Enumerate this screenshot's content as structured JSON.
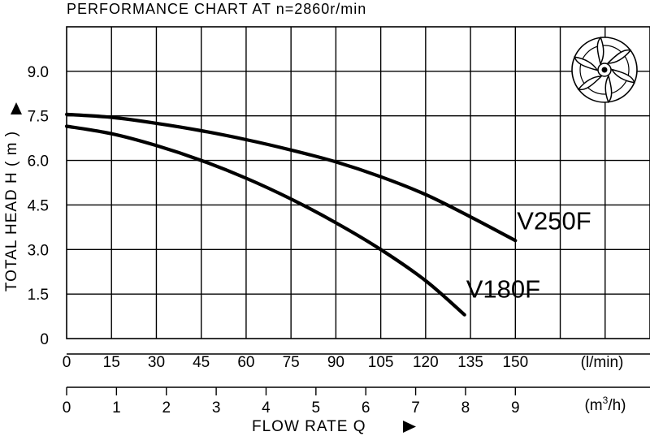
{
  "chart_data": {
    "type": "line",
    "title": "PERFORMANCE  CHART  AT  n=2860r/min",
    "ylabel": "TOTAL HEAD  H ( m )",
    "xlabel": "FLOW  RATE  Q",
    "ylim": [
      0,
      10.5
    ],
    "y_ticks": [
      "0",
      "1.5",
      "3.0",
      "4.5",
      "6.0",
      "7.5",
      "9.0"
    ],
    "y_tick_values": [
      0,
      1.5,
      3.0,
      4.5,
      6.0,
      7.5,
      9.0
    ],
    "x_lmin": {
      "unit": "(l/min)",
      "ticks": [
        "0",
        "15",
        "30",
        "45",
        "60",
        "75",
        "90",
        "105",
        "120",
        "135",
        "150"
      ],
      "values": [
        0,
        15,
        30,
        45,
        60,
        75,
        90,
        105,
        120,
        135,
        150
      ]
    },
    "x_m3h": {
      "unit_prefix": "(m",
      "unit_sup": "3",
      "unit_suffix": "/h)",
      "ticks": [
        "0",
        "1",
        "2",
        "3",
        "4",
        "5",
        "6",
        "7",
        "8",
        "9"
      ],
      "values": [
        0,
        1,
        2,
        3,
        4,
        5,
        6,
        7,
        8,
        9
      ]
    },
    "xlim_lmin": [
      0,
      195
    ],
    "grid": true,
    "series": [
      {
        "name": "V250F",
        "x": [
          0,
          15,
          30,
          45,
          60,
          75,
          90,
          105,
          120,
          135,
          150
        ],
        "y": [
          7.55,
          7.45,
          7.25,
          7.0,
          6.7,
          6.35,
          5.95,
          5.45,
          4.85,
          4.1,
          3.3
        ]
      },
      {
        "name": "V180F",
        "x": [
          0,
          15,
          30,
          45,
          60,
          75,
          90,
          105,
          120,
          133
        ],
        "y": [
          7.15,
          6.9,
          6.5,
          6.0,
          5.4,
          4.7,
          3.9,
          3.0,
          1.95,
          0.8
        ]
      }
    ]
  }
}
